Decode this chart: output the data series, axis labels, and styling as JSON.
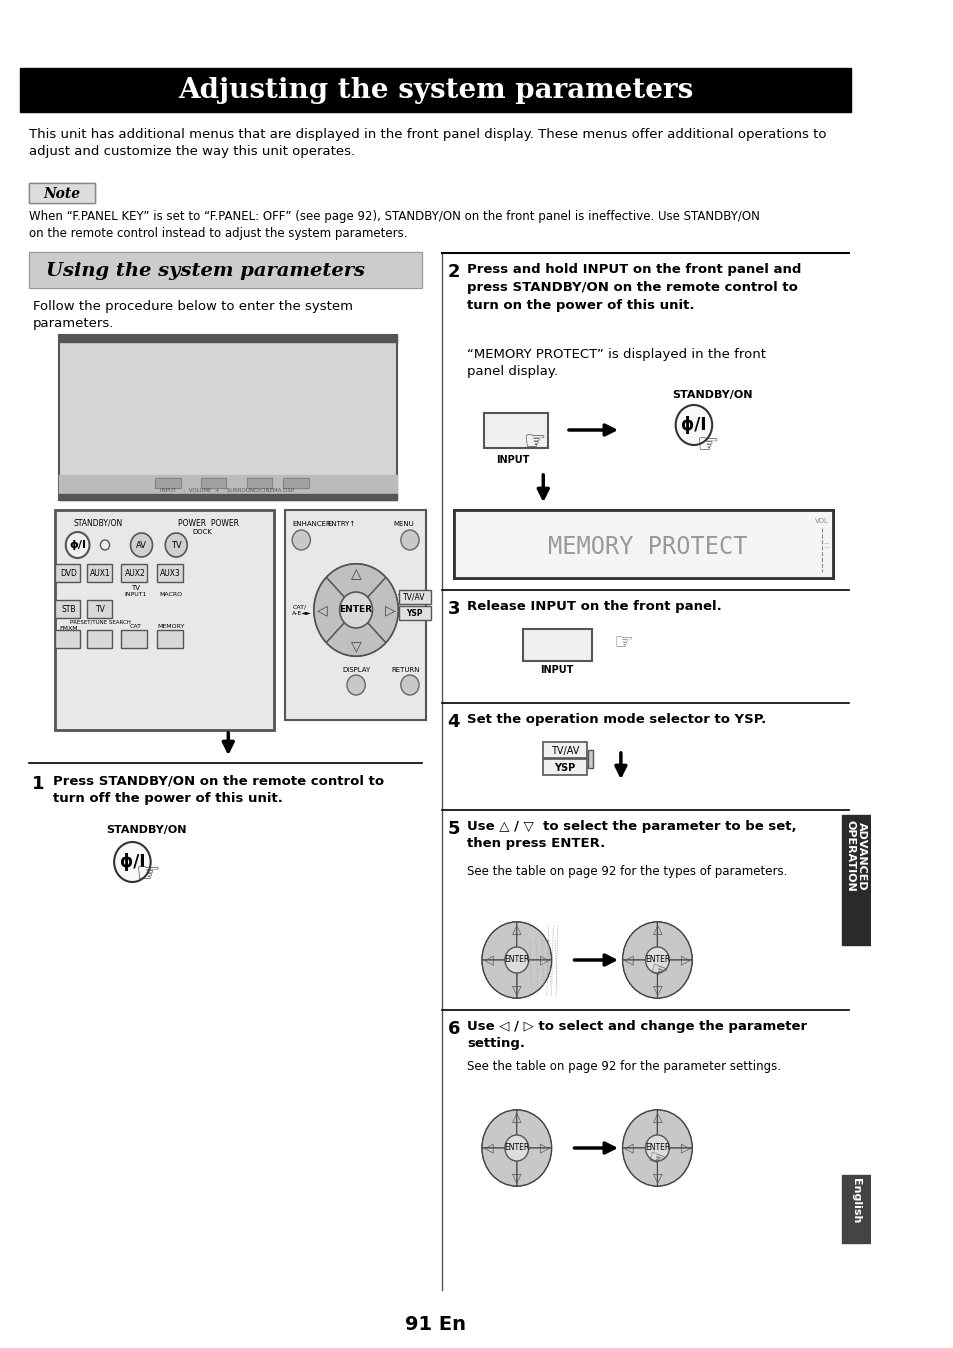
{
  "page_bg": "#ffffff",
  "title_text": "Adjusting the system parameters",
  "title_bg": "#000000",
  "title_color": "#ffffff",
  "title_fontsize": 20,
  "section_header": "Using the system parameters",
  "section_header_bg": "#cccccc",
  "section_header_color": "#000000",
  "body_fontsize": 9.5,
  "small_fontsize": 8.5,
  "intro_text": "This unit has additional menus that are displayed in the front panel display. These menus offer additional operations to\nadjust and customize the way this unit operates.",
  "note_label": "Note",
  "note_text": "When “F.PANEL KEY” is set to “F.PANEL: OFF” (see page 92), STANDBY/ON on the front panel is ineffective. Use STANDBY/ON\non the remote control instead to adjust the system parameters.",
  "follow_text": "Follow the procedure below to enter the system\nparameters.",
  "step1_num": "1",
  "step1_text": "Press STANDBY/ON on the remote control to\nturn off the power of this unit.",
  "step1_label": "STANDBY/ON",
  "step2_num": "2",
  "step2_text_bold": "Press and hold INPUT on the front panel and\npress STANDBY/ON on the remote control to\nturn on the power of this unit.",
  "step2_text_normal": "“MEMORY PROTECT” is displayed in the front\npanel display.",
  "step2_label1": "STANDBY/ON",
  "step2_label2": "INPUT",
  "memory_protect_text": "MEMORY PROTECT",
  "step3_num": "3",
  "step3_text": "Release INPUT on the front panel.",
  "step3_label": "INPUT",
  "step4_num": "4",
  "step4_text": "Set the operation mode selector to YSP.",
  "step4_label1": "TV/AV",
  "step4_label2": "YSP",
  "step5_num": "5",
  "step5_text_bold": "Use △ / ▽  to select the parameter to be set,\nthen press ENTER.",
  "step5_text_normal": "See the table on page 92 for the types of parameters.",
  "step6_num": "6",
  "step6_text_bold": "Use ◁ / ▷ to select and change the parameter\nsetting.",
  "step6_text_normal": "See the table on page 92 for the parameter settings.",
  "side_label": "ADVANCED\nOPERATION",
  "page_number": "91 En",
  "english_label": "English",
  "note_bg": "#dddddd",
  "remote_bg": "#e8e8e8",
  "device_bg": "#d0d0d0"
}
